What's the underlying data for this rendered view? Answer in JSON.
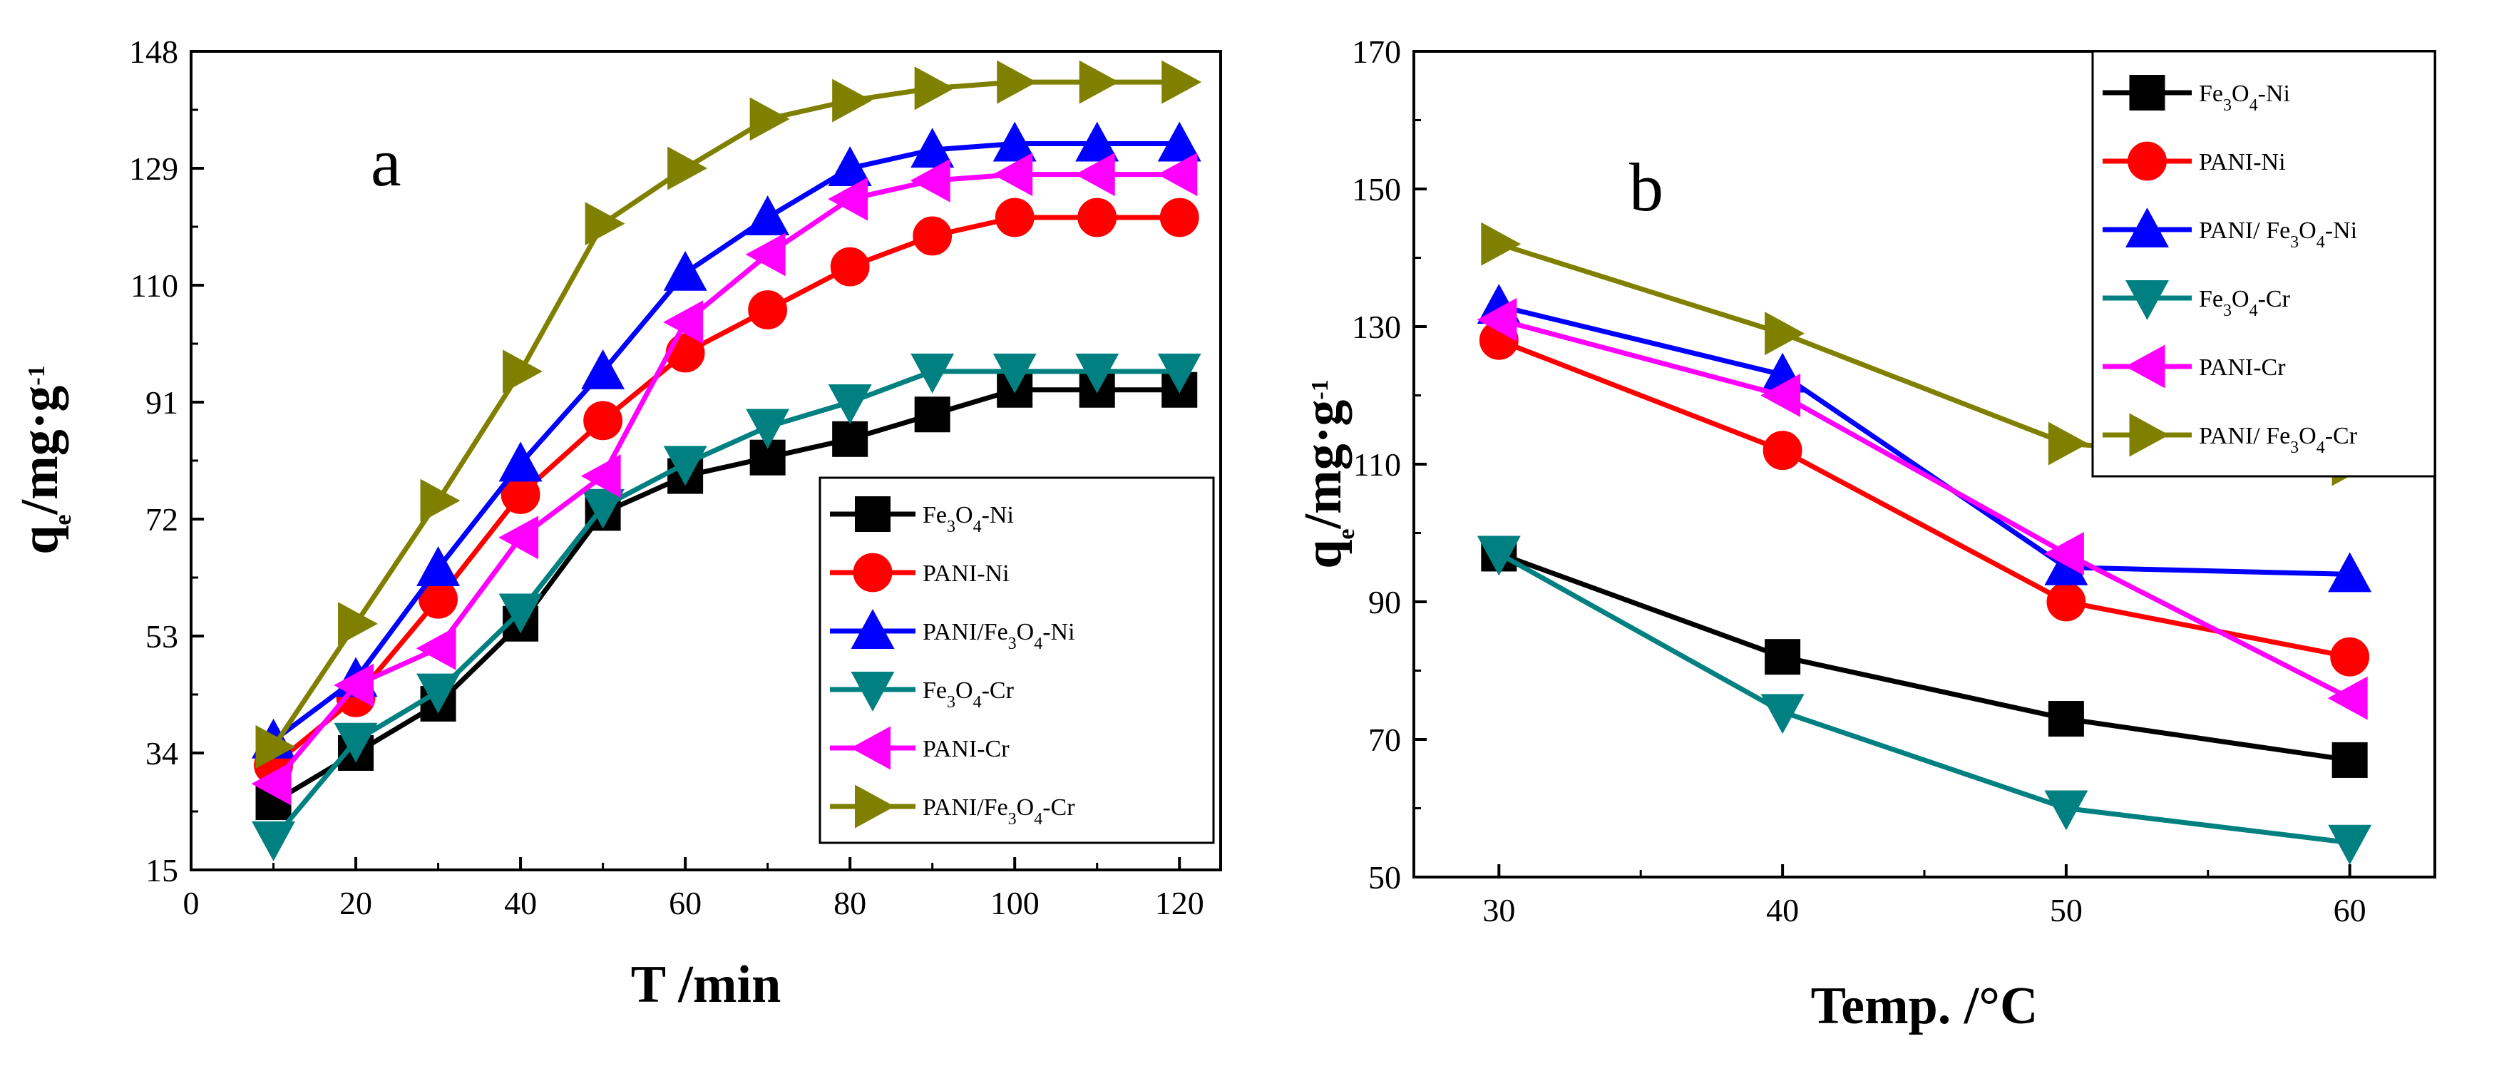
{
  "chart_data": [
    {
      "type": "line",
      "panel_label": "a",
      "xlabel": "T /min",
      "ylabel": "q_e/mg·g^-1",
      "xlim": [
        0,
        125
      ],
      "ylim": [
        15,
        148
      ],
      "xticks": [
        0,
        20,
        40,
        60,
        80,
        100,
        120
      ],
      "yticks": [
        15,
        34,
        53,
        72,
        91,
        110,
        129,
        148
      ],
      "legend_position": "lower-right",
      "grid": false,
      "x": [
        10,
        20,
        30,
        40,
        50,
        60,
        70,
        80,
        90,
        100,
        110,
        120
      ],
      "series": [
        {
          "name": "Fe3O4-Ni",
          "color": "#000000",
          "marker": "square",
          "values": [
            26,
            34,
            42,
            55,
            73,
            79,
            82,
            85,
            89,
            93,
            93,
            93
          ]
        },
        {
          "name": "PANI-Ni",
          "color": "#ff0000",
          "marker": "circle",
          "values": [
            32,
            43,
            59,
            76,
            88,
            99,
            106,
            113,
            118,
            121,
            121,
            121
          ]
        },
        {
          "name": "PANI/Fe3O4-Ni",
          "color": "#0000ff",
          "marker": "triangle-up",
          "values": [
            36,
            46,
            64,
            81,
            96,
            112,
            121,
            129,
            132,
            133,
            133,
            133
          ]
        },
        {
          "name": "Fe3O4-Cr",
          "color": "#008080",
          "marker": "triangle-down",
          "values": [
            20,
            36,
            44,
            57,
            74,
            81,
            87,
            91,
            96,
            96,
            96,
            96
          ]
        },
        {
          "name": "PANI-Cr",
          "color": "#ff00ff",
          "marker": "triangle-left",
          "values": [
            29,
            45,
            51,
            69,
            79,
            104,
            115,
            124,
            127,
            128,
            128,
            128
          ]
        },
        {
          "name": "PANI/Fe3O4-Cr",
          "color": "#808000",
          "marker": "triangle-right",
          "values": [
            35,
            55,
            75,
            96,
            120,
            129,
            137,
            140,
            142,
            143,
            143,
            143
          ]
        }
      ]
    },
    {
      "type": "line",
      "panel_label": "b",
      "xlabel": "Temp. /°C",
      "ylabel": "q_e/mg·g^-1",
      "xlim": [
        27,
        63
      ],
      "ylim": [
        50,
        170
      ],
      "xticks": [
        30,
        40,
        50,
        60
      ],
      "yticks": [
        50,
        70,
        90,
        110,
        130,
        150,
        170
      ],
      "legend_position": "top-right",
      "grid": false,
      "x": [
        30,
        40,
        50,
        60
      ],
      "series": [
        {
          "name": "Fe3O4-Ni",
          "color": "#000000",
          "marker": "square",
          "values": [
            97,
            82,
            73,
            67
          ]
        },
        {
          "name": "PANI-Ni",
          "color": "#ff0000",
          "marker": "circle",
          "values": [
            128,
            112,
            90,
            82
          ]
        },
        {
          "name": "PANI/ Fe3O4-Ni",
          "color": "#0000ff",
          "marker": "triangle-up",
          "values": [
            133,
            123,
            95,
            94
          ]
        },
        {
          "name": "Fe3O4-Cr",
          "color": "#008080",
          "marker": "triangle-down",
          "values": [
            97,
            74,
            60,
            55
          ]
        },
        {
          "name": "PANI-Cr",
          "color": "#ff00ff",
          "marker": "triangle-left",
          "values": [
            131,
            120,
            97,
            76
          ]
        },
        {
          "name": "PANI/ Fe3O4-Cr",
          "color": "#808000",
          "marker": "triangle-right",
          "values": [
            142,
            129,
            113,
            110
          ]
        }
      ]
    }
  ]
}
